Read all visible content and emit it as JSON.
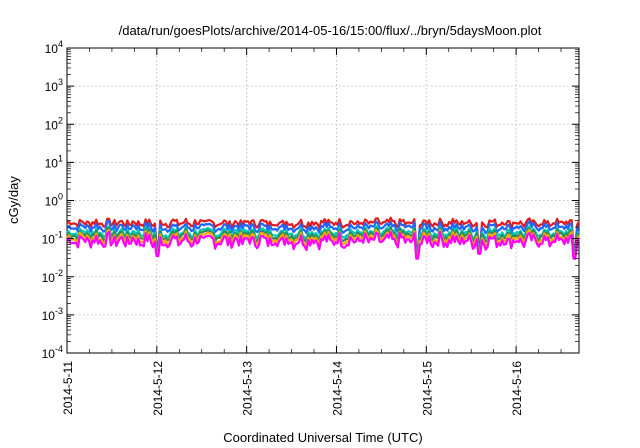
{
  "chart_data": {
    "type": "line",
    "title": "/data/run/goesPlots/archive/2014-05-16/15:00/flux/../bryn/5daysMoon.plot",
    "xlabel": "Coordinated Universal Time (UTC)",
    "ylabel": "cGy/day",
    "y_scale": "log",
    "ylim": [
      0.0001,
      10000
    ],
    "xlim_days": [
      0,
      5.7
    ],
    "grid": true,
    "x_tick_labels": [
      "2014-5-11",
      "2014-5-12",
      "2014-5-13",
      "2014-5-14",
      "2014-5-15",
      "2014-5-16"
    ],
    "y_ticks": [
      {
        "base": "10",
        "exp": "-4",
        "value": 0.0001
      },
      {
        "base": "10",
        "exp": "-3",
        "value": 0.001
      },
      {
        "base": "10",
        "exp": "-2",
        "value": 0.01
      },
      {
        "base": "10",
        "exp": "-1",
        "value": 0.1
      },
      {
        "base": "10",
        "exp": "0",
        "value": 1
      },
      {
        "base": "10",
        "exp": "1",
        "value": 10
      },
      {
        "base": "10",
        "exp": "2",
        "value": 100
      },
      {
        "base": "10",
        "exp": "3",
        "value": 1000
      },
      {
        "base": "10",
        "exp": "4",
        "value": 10000
      }
    ],
    "series": [
      {
        "color": "#e41a1c",
        "level": 0.26
      },
      {
        "color": "#1e66ff",
        "level": 0.2
      },
      {
        "color": "#00c8b4",
        "level": 0.145
      },
      {
        "color": "#2e8b57",
        "level": 0.125
      },
      {
        "color": "#ffa500",
        "level": 0.105
      },
      {
        "color": "#ff00ff",
        "level": 0.088
      }
    ],
    "dips": [
      {
        "day": 1.0,
        "value": 0.035
      },
      {
        "day": 3.9,
        "value": 0.03
      },
      {
        "day": 4.6,
        "value": 0.04
      },
      {
        "day": 5.65,
        "value": 0.03
      }
    ]
  }
}
